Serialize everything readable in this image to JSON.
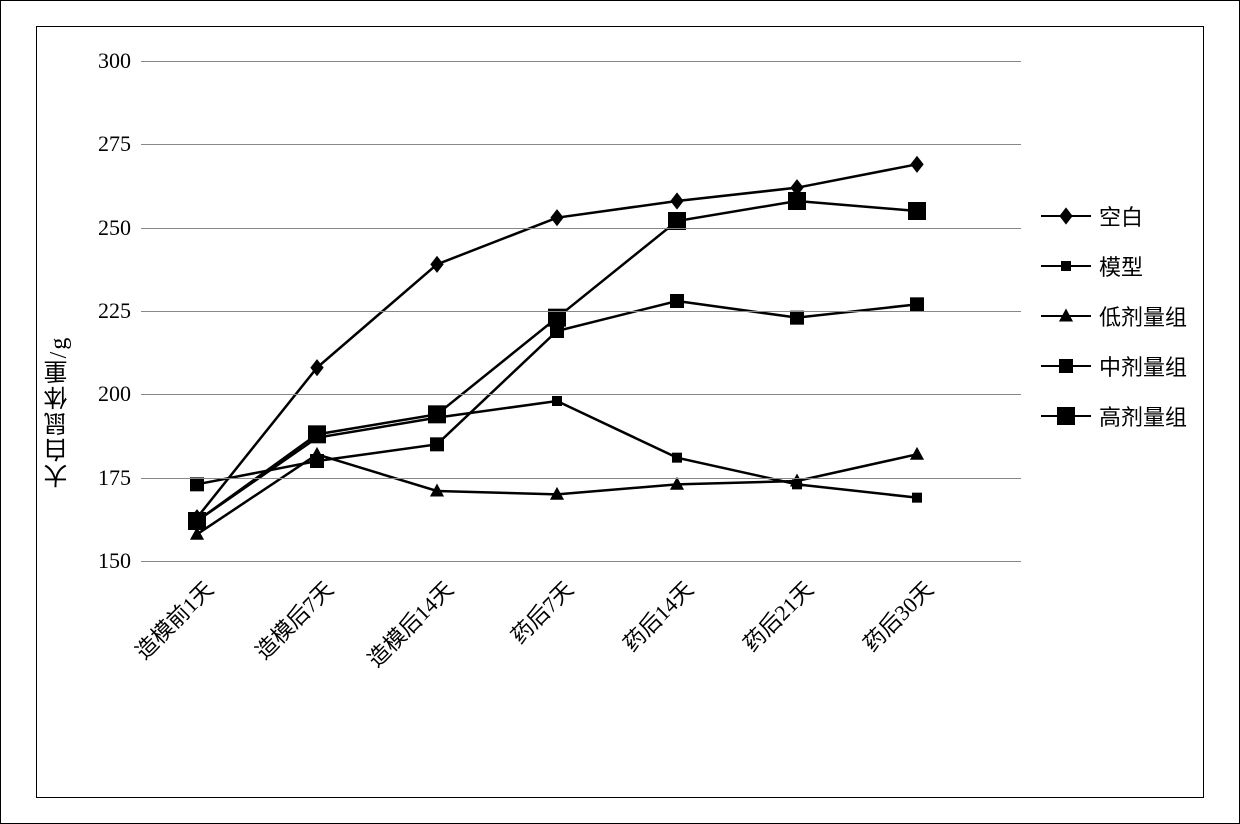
{
  "chart": {
    "type": "line",
    "y_axis_label": "大白鼠体重/g",
    "ylim": [
      150,
      300
    ],
    "ytick_step": 25,
    "yticks": [
      150,
      175,
      200,
      225,
      250,
      275,
      300
    ],
    "categories": [
      "造模前1天",
      "造模后7天",
      "造模后14天",
      "药后7天",
      "药后14天",
      "药后21天",
      "药后30天"
    ],
    "background_color": "#ffffff",
    "grid_color": "#888888",
    "line_color": "#000000",
    "label_fontsize": 24,
    "tick_fontsize": 22,
    "series": [
      {
        "name": "空白",
        "marker": "diamond",
        "marker_size": 12,
        "values": [
          163,
          208,
          239,
          253,
          258,
          262,
          269
        ]
      },
      {
        "name": "模型",
        "marker": "square",
        "marker_size": 10,
        "values": [
          162,
          187,
          193,
          198,
          181,
          173,
          169
        ]
      },
      {
        "name": "低剂量组",
        "marker": "triangle",
        "marker_size": 12,
        "values": [
          158,
          182,
          171,
          170,
          173,
          174,
          182
        ]
      },
      {
        "name": "中剂量组",
        "marker": "square",
        "marker_size": 14,
        "values": [
          173,
          180,
          185,
          219,
          228,
          223,
          227
        ]
      },
      {
        "name": "高剂量组",
        "marker": "square",
        "marker_size": 18,
        "values": [
          162,
          188,
          194,
          223,
          252,
          258,
          255
        ]
      }
    ]
  }
}
